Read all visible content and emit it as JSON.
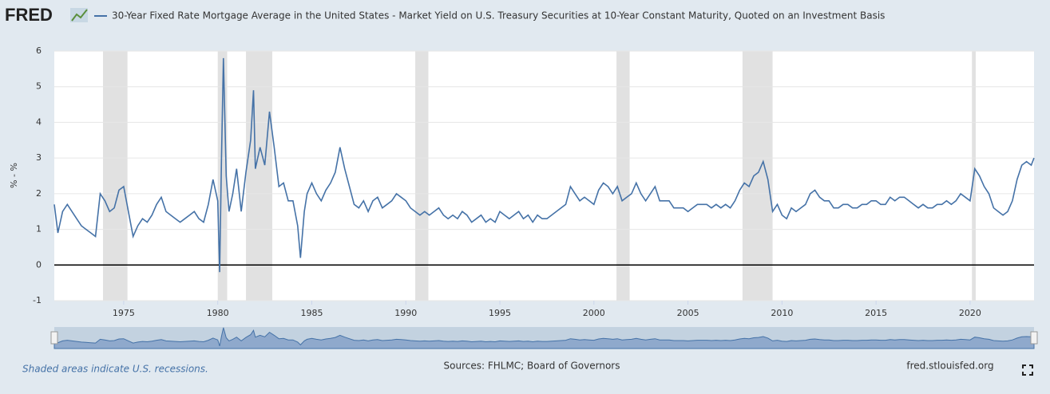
{
  "logo": "FRED",
  "chart_data": {
    "type": "line",
    "ylabel": "% - %",
    "note": "Shaded areas indicate U.S. recessions.",
    "source": "Sources: FHLMC; Board of Governors",
    "credit": "fred.stlouisfed.org",
    "xlim": [
      1971.31,
      2023.4
    ],
    "xticks": [
      1975,
      1980,
      1985,
      1990,
      1995,
      2000,
      2005,
      2010,
      2015,
      2020
    ],
    "ylim": [
      -1,
      6
    ],
    "yticks": [
      -1,
      0,
      1,
      2,
      3,
      4,
      5,
      6
    ],
    "grid": true,
    "recessions": [
      [
        1973.9,
        1975.2
      ],
      [
        1980.0,
        1980.5
      ],
      [
        1981.5,
        1982.9
      ],
      [
        1990.5,
        1991.2
      ],
      [
        2001.2,
        2001.9
      ],
      [
        2007.9,
        2009.5
      ],
      [
        2020.1,
        2020.3
      ]
    ],
    "x": [
      1971.31,
      1971.5,
      1971.75,
      1972,
      1972.25,
      1972.5,
      1972.75,
      1973,
      1973.25,
      1973.5,
      1973.75,
      1974,
      1974.25,
      1974.5,
      1974.75,
      1975,
      1975.25,
      1975.5,
      1975.75,
      1976,
      1976.25,
      1976.5,
      1976.75,
      1977,
      1977.25,
      1977.5,
      1977.75,
      1978,
      1978.25,
      1978.5,
      1978.75,
      1979,
      1979.25,
      1979.5,
      1979.75,
      1980,
      1980.1,
      1980.2,
      1980.3,
      1980.45,
      1980.6,
      1980.8,
      1981,
      1981.25,
      1981.5,
      1981.75,
      1981.9,
      1982,
      1982.25,
      1982.5,
      1982.75,
      1983,
      1983.25,
      1983.5,
      1983.75,
      1984,
      1984.25,
      1984.4,
      1984.6,
      1984.75,
      1985,
      1985.25,
      1985.5,
      1985.75,
      1986,
      1986.25,
      1986.5,
      1986.75,
      1987,
      1987.25,
      1987.5,
      1987.75,
      1988,
      1988.25,
      1988.5,
      1988.75,
      1989,
      1989.25,
      1989.5,
      1989.75,
      1990,
      1990.25,
      1990.5,
      1990.75,
      1991,
      1991.25,
      1991.5,
      1991.75,
      1992,
      1992.25,
      1992.5,
      1992.75,
      1993,
      1993.25,
      1993.5,
      1993.75,
      1994,
      1994.25,
      1994.5,
      1994.75,
      1995,
      1995.25,
      1995.5,
      1995.75,
      1996,
      1996.25,
      1996.5,
      1996.75,
      1997,
      1997.25,
      1997.5,
      1997.75,
      1998,
      1998.25,
      1998.5,
      1998.75,
      1999,
      1999.25,
      1999.5,
      1999.75,
      2000,
      2000.25,
      2000.5,
      2000.75,
      2001,
      2001.25,
      2001.5,
      2001.75,
      2002,
      2002.25,
      2002.5,
      2002.75,
      2003,
      2003.25,
      2003.5,
      2003.75,
      2004,
      2004.25,
      2004.5,
      2004.75,
      2005,
      2005.25,
      2005.5,
      2005.75,
      2006,
      2006.25,
      2006.5,
      2006.75,
      2007,
      2007.25,
      2007.5,
      2007.75,
      2008,
      2008.25,
      2008.5,
      2008.75,
      2009,
      2009.25,
      2009.5,
      2009.75,
      2010,
      2010.25,
      2010.5,
      2010.75,
      2011,
      2011.25,
      2011.5,
      2011.75,
      2012,
      2012.25,
      2012.5,
      2012.75,
      2013,
      2013.25,
      2013.5,
      2013.75,
      2014,
      2014.25,
      2014.5,
      2014.75,
      2015,
      2015.25,
      2015.5,
      2015.75,
      2016,
      2016.25,
      2016.5,
      2016.75,
      2017,
      2017.25,
      2017.5,
      2017.75,
      2018,
      2018.25,
      2018.5,
      2018.75,
      2019,
      2019.25,
      2019.5,
      2019.75,
      2020,
      2020.25,
      2020.5,
      2020.75,
      2021,
      2021.25,
      2021.5,
      2021.75,
      2022,
      2022.25,
      2022.5,
      2022.75,
      2023,
      2023.25,
      2023.4
    ],
    "series": [
      {
        "name": "30-Year Fixed Rate Mortgage Average in the United States - Market Yield on U.S. Treasury Securities at 10-Year Constant Maturity, Quoted on an Investment Basis",
        "color": "#4572a7",
        "values": [
          1.7,
          0.9,
          1.5,
          1.7,
          1.5,
          1.3,
          1.1,
          1.0,
          0.9,
          0.8,
          2.0,
          1.8,
          1.5,
          1.6,
          2.1,
          2.2,
          1.5,
          0.8,
          1.1,
          1.3,
          1.2,
          1.4,
          1.7,
          1.9,
          1.5,
          1.4,
          1.3,
          1.2,
          1.3,
          1.4,
          1.5,
          1.3,
          1.2,
          1.7,
          2.4,
          1.8,
          -0.2,
          3.0,
          5.8,
          2.5,
          1.5,
          2.0,
          2.7,
          1.5,
          2.6,
          3.5,
          4.9,
          2.7,
          3.3,
          2.8,
          4.3,
          3.3,
          2.2,
          2.3,
          1.8,
          1.8,
          1.1,
          0.2,
          1.5,
          2.0,
          2.3,
          2.0,
          1.8,
          2.1,
          2.3,
          2.6,
          3.3,
          2.7,
          2.2,
          1.7,
          1.6,
          1.8,
          1.5,
          1.8,
          1.9,
          1.6,
          1.7,
          1.8,
          2.0,
          1.9,
          1.8,
          1.6,
          1.5,
          1.4,
          1.5,
          1.4,
          1.5,
          1.6,
          1.4,
          1.3,
          1.4,
          1.3,
          1.5,
          1.4,
          1.2,
          1.3,
          1.4,
          1.2,
          1.3,
          1.2,
          1.5,
          1.4,
          1.3,
          1.4,
          1.5,
          1.3,
          1.4,
          1.2,
          1.4,
          1.3,
          1.3,
          1.4,
          1.5,
          1.6,
          1.7,
          2.2,
          2.0,
          1.8,
          1.9,
          1.8,
          1.7,
          2.1,
          2.3,
          2.2,
          2.0,
          2.2,
          1.8,
          1.9,
          2.0,
          2.3,
          2.0,
          1.8,
          2.0,
          2.2,
          1.8,
          1.8,
          1.8,
          1.6,
          1.6,
          1.6,
          1.5,
          1.6,
          1.7,
          1.7,
          1.7,
          1.6,
          1.7,
          1.6,
          1.7,
          1.6,
          1.8,
          2.1,
          2.3,
          2.2,
          2.5,
          2.6,
          2.9,
          2.4,
          1.5,
          1.7,
          1.4,
          1.3,
          1.6,
          1.5,
          1.6,
          1.7,
          2.0,
          2.1,
          1.9,
          1.8,
          1.8,
          1.6,
          1.6,
          1.7,
          1.7,
          1.6,
          1.6,
          1.7,
          1.7,
          1.8,
          1.8,
          1.7,
          1.7,
          1.9,
          1.8,
          1.9,
          1.9,
          1.8,
          1.7,
          1.6,
          1.7,
          1.6,
          1.6,
          1.7,
          1.7,
          1.8,
          1.7,
          1.8,
          2.0,
          1.9,
          1.8,
          2.7,
          2.5,
          2.2,
          2.0,
          1.6,
          1.5,
          1.4,
          1.5,
          1.8,
          2.4,
          2.8,
          2.9,
          2.8,
          3.0
        ]
      }
    ]
  }
}
